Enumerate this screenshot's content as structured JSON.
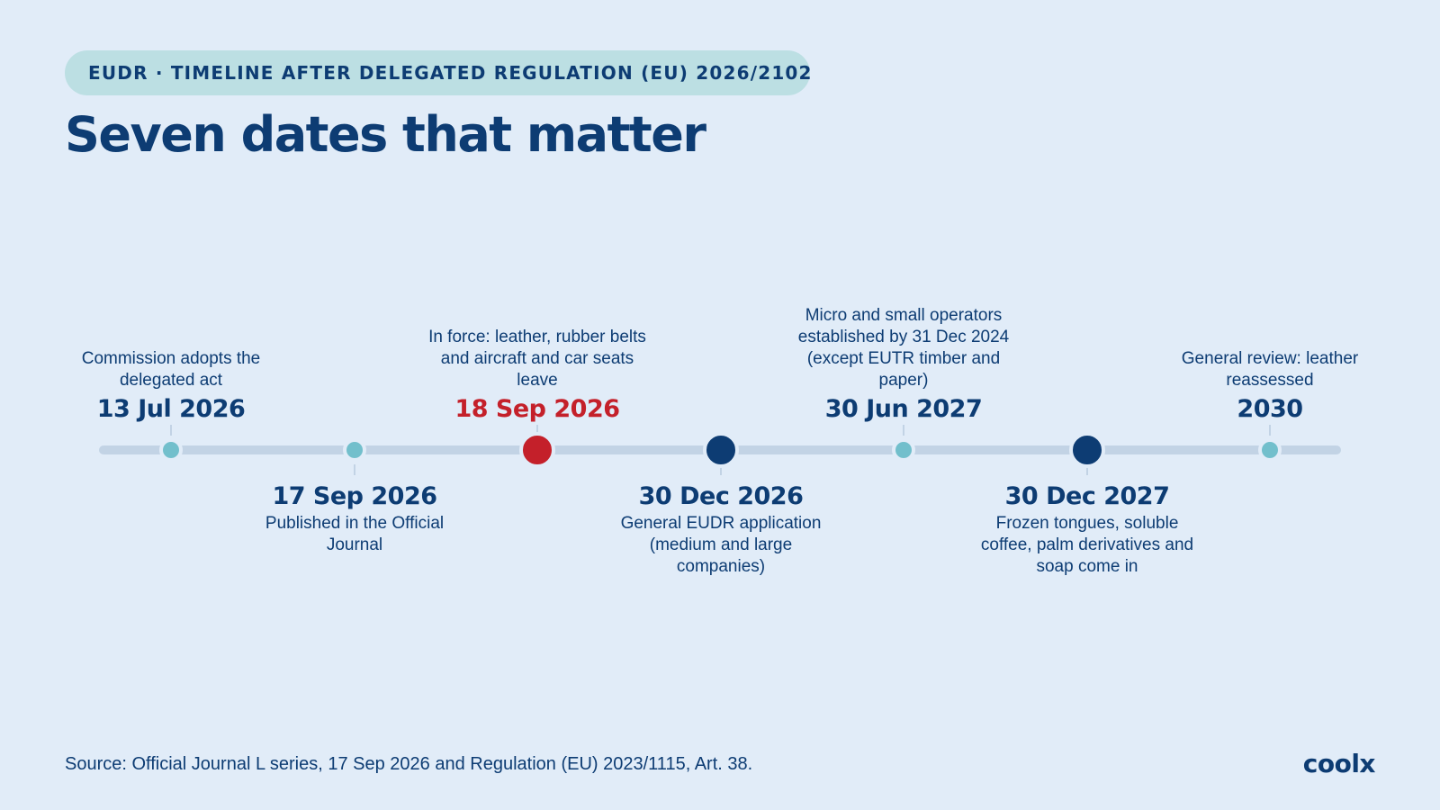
{
  "header": {
    "eyebrow": "EUDR · TIMELINE AFTER DELEGATED REGULATION (EU) 2026/2102",
    "title": "Seven dates that matter"
  },
  "colors": {
    "background": "#e1ecf8",
    "navy": "#0d3c73",
    "teal": "#72bfcc",
    "red": "#c4202a",
    "track": "#c2d3e5",
    "pill": "#bcdfe3"
  },
  "timeline": {
    "events": [
      {
        "date": "13 Jul 2026",
        "description": "Commission adopts the delegated act",
        "placement": "above",
        "marker": "small",
        "emphasis": "normal"
      },
      {
        "date": "17 Sep 2026",
        "description": "Published in the Official Journal",
        "placement": "below",
        "marker": "small",
        "emphasis": "normal"
      },
      {
        "date": "18 Sep 2026",
        "description": "In force: leather, rubber belts and aircraft and car seats leave",
        "placement": "above",
        "marker": "large",
        "emphasis": "highlight"
      },
      {
        "date": "30 Dec 2026",
        "description": "General EUDR application (medium and large companies)",
        "placement": "below",
        "marker": "large",
        "emphasis": "major"
      },
      {
        "date": "30 Jun 2027",
        "description": "Micro and small operators established by 31 Dec 2024 (except EUTR timber and paper)",
        "placement": "above",
        "marker": "small",
        "emphasis": "normal"
      },
      {
        "date": "30 Dec 2027",
        "description": "Frozen tongues, soluble coffee, palm derivatives and soap come in",
        "placement": "below",
        "marker": "large",
        "emphasis": "major"
      },
      {
        "date": "2030",
        "description": "General review: leather reassessed",
        "placement": "above",
        "marker": "small",
        "emphasis": "normal"
      }
    ]
  },
  "footer": {
    "source": "Source: Official Journal L series, 17 Sep 2026 and Regulation (EU) 2023/1115, Art. 38.",
    "brand": "coolx"
  }
}
